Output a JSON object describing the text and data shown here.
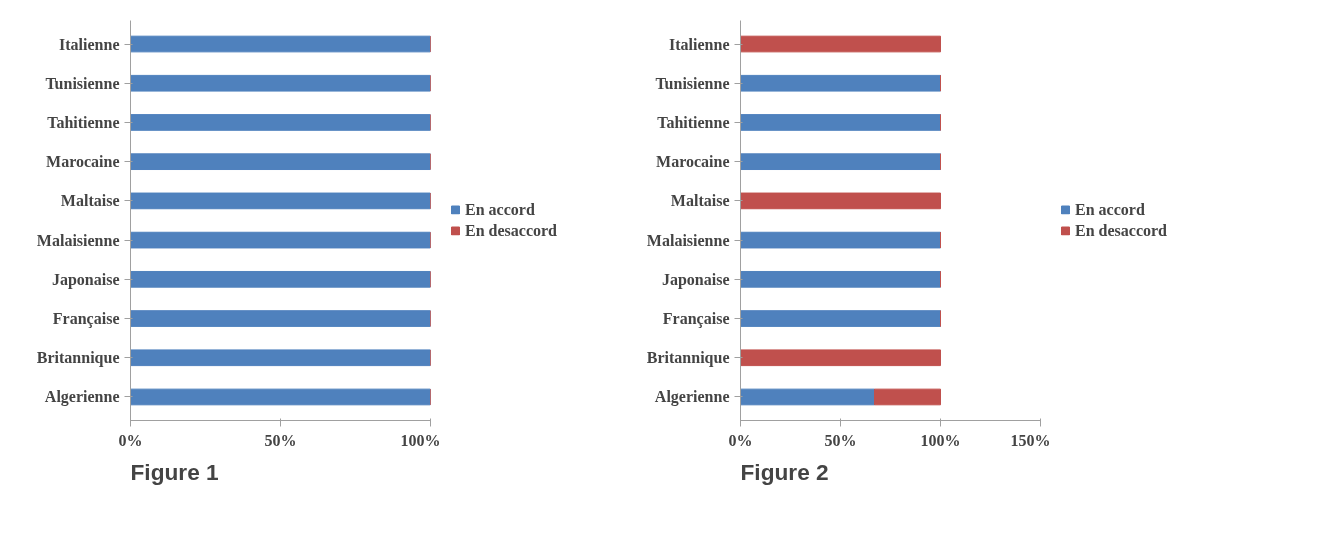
{
  "chart_data": [
    {
      "type": "bar",
      "title": "Figure 1",
      "orientation": "horizontal",
      "stacked": true,
      "legend": "right",
      "grid": false,
      "categories": [
        "Italienne",
        "Tunisienne",
        "Tahitienne",
        "Marocaine",
        "Maltaise",
        "Malaisienne",
        "Japonaise",
        "Française",
        "Britannique",
        "Algerienne"
      ],
      "xlim": [
        0,
        100
      ],
      "xticks": [
        {
          "value": 0,
          "label": "0%"
        },
        {
          "value": 50,
          "label": "50%"
        },
        {
          "value": 100,
          "label": "100%"
        }
      ],
      "series": [
        {
          "name": "En accord",
          "color": "#4f81bd",
          "values": [
            100,
            100,
            100,
            100,
            100,
            100,
            100,
            100,
            100,
            100
          ]
        },
        {
          "name": "En desaccord",
          "color": "#c0504d",
          "values": [
            0,
            0,
            0,
            0,
            0,
            0,
            0,
            0,
            0,
            0
          ]
        }
      ]
    },
    {
      "type": "bar",
      "title": "Figure 2",
      "orientation": "horizontal",
      "stacked": true,
      "legend": "right",
      "grid": false,
      "categories": [
        "Italienne",
        "Tunisienne",
        "Tahitienne",
        "Marocaine",
        "Maltaise",
        "Malaisienne",
        "Japonaise",
        "Française",
        "Britannique",
        "Algerienne"
      ],
      "xlim": [
        0,
        150
      ],
      "xticks": [
        {
          "value": 0,
          "label": "0%"
        },
        {
          "value": 50,
          "label": "50%"
        },
        {
          "value": 100,
          "label": "100%"
        },
        {
          "value": 150,
          "label": "150%"
        }
      ],
      "series": [
        {
          "name": "En accord",
          "color": "#4f81bd",
          "values": [
            0,
            100,
            100,
            100,
            0,
            100,
            100,
            100,
            0,
            67
          ]
        },
        {
          "name": "En desaccord",
          "color": "#c0504d",
          "values": [
            100,
            0,
            0,
            0,
            100,
            0,
            0,
            0,
            100,
            33
          ]
        }
      ]
    }
  ]
}
